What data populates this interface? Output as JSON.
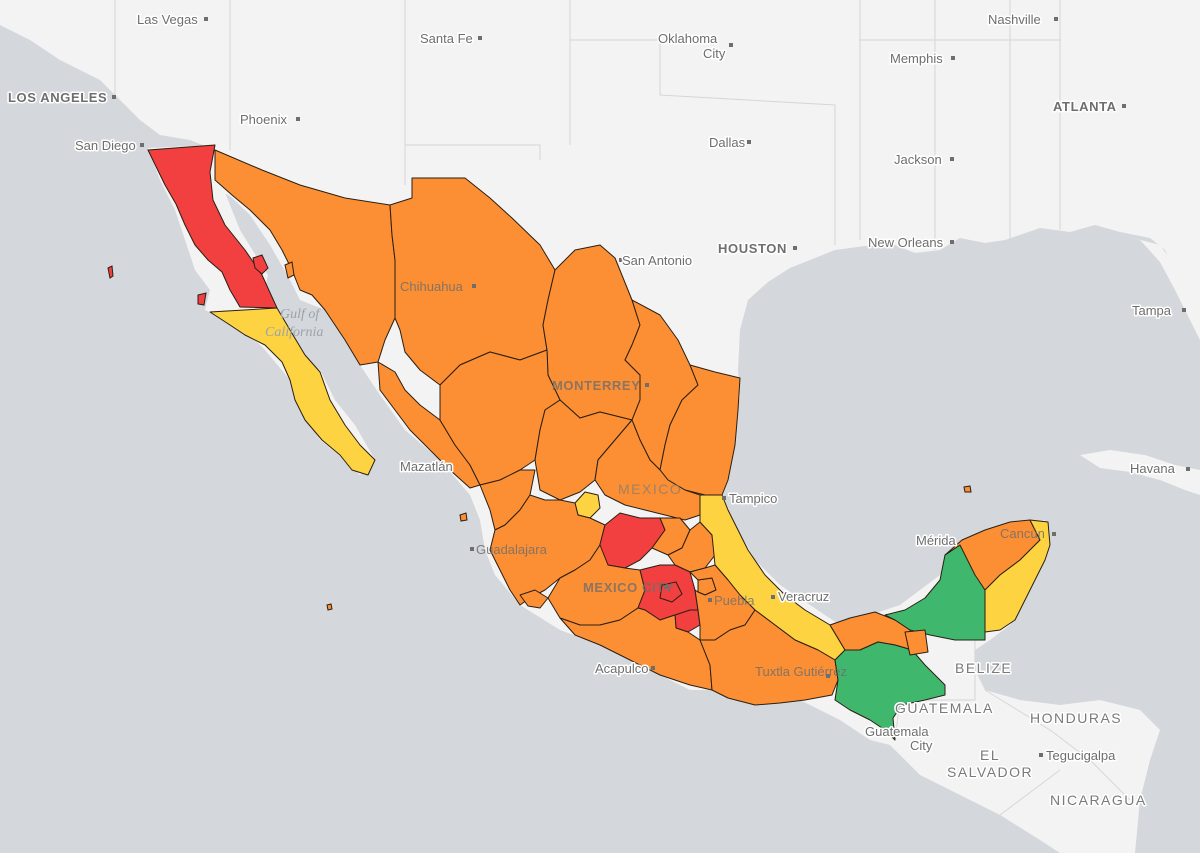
{
  "legend_colors": {
    "red": "#f23f3f",
    "orange": "#fc8f33",
    "yellow": "#fdd342",
    "green": "#3fb86d"
  },
  "basemap": {
    "land": "#f3f3f3",
    "water": "#d4d7db",
    "borders": "#d6d6d6"
  },
  "states": [
    {
      "name": "Baja California",
      "color": "red"
    },
    {
      "name": "Baja California Sur",
      "color": "yellow"
    },
    {
      "name": "Sonora",
      "color": "orange"
    },
    {
      "name": "Chihuahua",
      "color": "orange"
    },
    {
      "name": "Coahuila",
      "color": "orange"
    },
    {
      "name": "Nuevo León",
      "color": "orange"
    },
    {
      "name": "Tamaulipas",
      "color": "orange"
    },
    {
      "name": "Sinaloa",
      "color": "orange"
    },
    {
      "name": "Durango",
      "color": "orange"
    },
    {
      "name": "Zacatecas",
      "color": "orange"
    },
    {
      "name": "San Luis Potosí",
      "color": "orange"
    },
    {
      "name": "Nayarit",
      "color": "orange"
    },
    {
      "name": "Aguascalientes",
      "color": "yellow"
    },
    {
      "name": "Jalisco",
      "color": "orange"
    },
    {
      "name": "Guanajuato",
      "color": "red"
    },
    {
      "name": "Querétaro",
      "color": "orange"
    },
    {
      "name": "Hidalgo",
      "color": "orange"
    },
    {
      "name": "Veracruz",
      "color": "yellow"
    },
    {
      "name": "Colima",
      "color": "orange"
    },
    {
      "name": "Michoacán",
      "color": "orange"
    },
    {
      "name": "Estado de México",
      "color": "red"
    },
    {
      "name": "Ciudad de México",
      "color": "red"
    },
    {
      "name": "Morelos",
      "color": "red"
    },
    {
      "name": "Tlaxcala",
      "color": "orange"
    },
    {
      "name": "Puebla",
      "color": "orange"
    },
    {
      "name": "Guerrero",
      "color": "orange"
    },
    {
      "name": "Oaxaca",
      "color": "orange"
    },
    {
      "name": "Tabasco",
      "color": "orange"
    },
    {
      "name": "Chiapas",
      "color": "green"
    },
    {
      "name": "Campeche",
      "color": "green"
    },
    {
      "name": "Yucatán",
      "color": "orange"
    },
    {
      "name": "Quintana Roo",
      "color": "yellow"
    }
  ],
  "labels": {
    "las_vegas": "Las Vegas",
    "santa_fe": "Santa Fe",
    "oklahoma": "Oklahoma",
    "oklahoma_city": "City",
    "nashville": "Nashville",
    "memphis": "Memphis",
    "los_angeles": "LOS ANGELES",
    "phoenix": "Phoenix",
    "atlanta": "ATLANTA",
    "san_diego": "San Diego",
    "dallas": "Dallas",
    "jackson": "Jackson",
    "houston": "HOUSTON",
    "new_orleans": "New Orleans",
    "san_antonio": "San Antonio",
    "chihuahua": "Chihuahua",
    "tampa": "Tampa",
    "gulf_of": "Gulf of",
    "california": "California",
    "monterrey": "MONTERREY",
    "mazatlan": "Mazatlán",
    "havana": "Havana",
    "mexico": "MEXICO",
    "tampico": "Tampico",
    "guadalajara": "Guadalajara",
    "merida": "Mérida",
    "cancun": "Cancún",
    "mexico_city": "MEXICO CITY",
    "puebla": "Puebla",
    "veracruz": "Veracruz",
    "acapulco": "Acapulco",
    "belize": "BELIZE",
    "tuxtla": "Tuxtla Gutiérrez",
    "guatemala": "GUATEMALA",
    "honduras": "HONDURAS",
    "guatemala_city_1": "Guatemala",
    "guatemala_city_2": "City",
    "el": "EL",
    "salvador": "SALVADOR",
    "tegucigalpa": "Tegucigalpa",
    "nicaragua": "NICARAGUA"
  }
}
